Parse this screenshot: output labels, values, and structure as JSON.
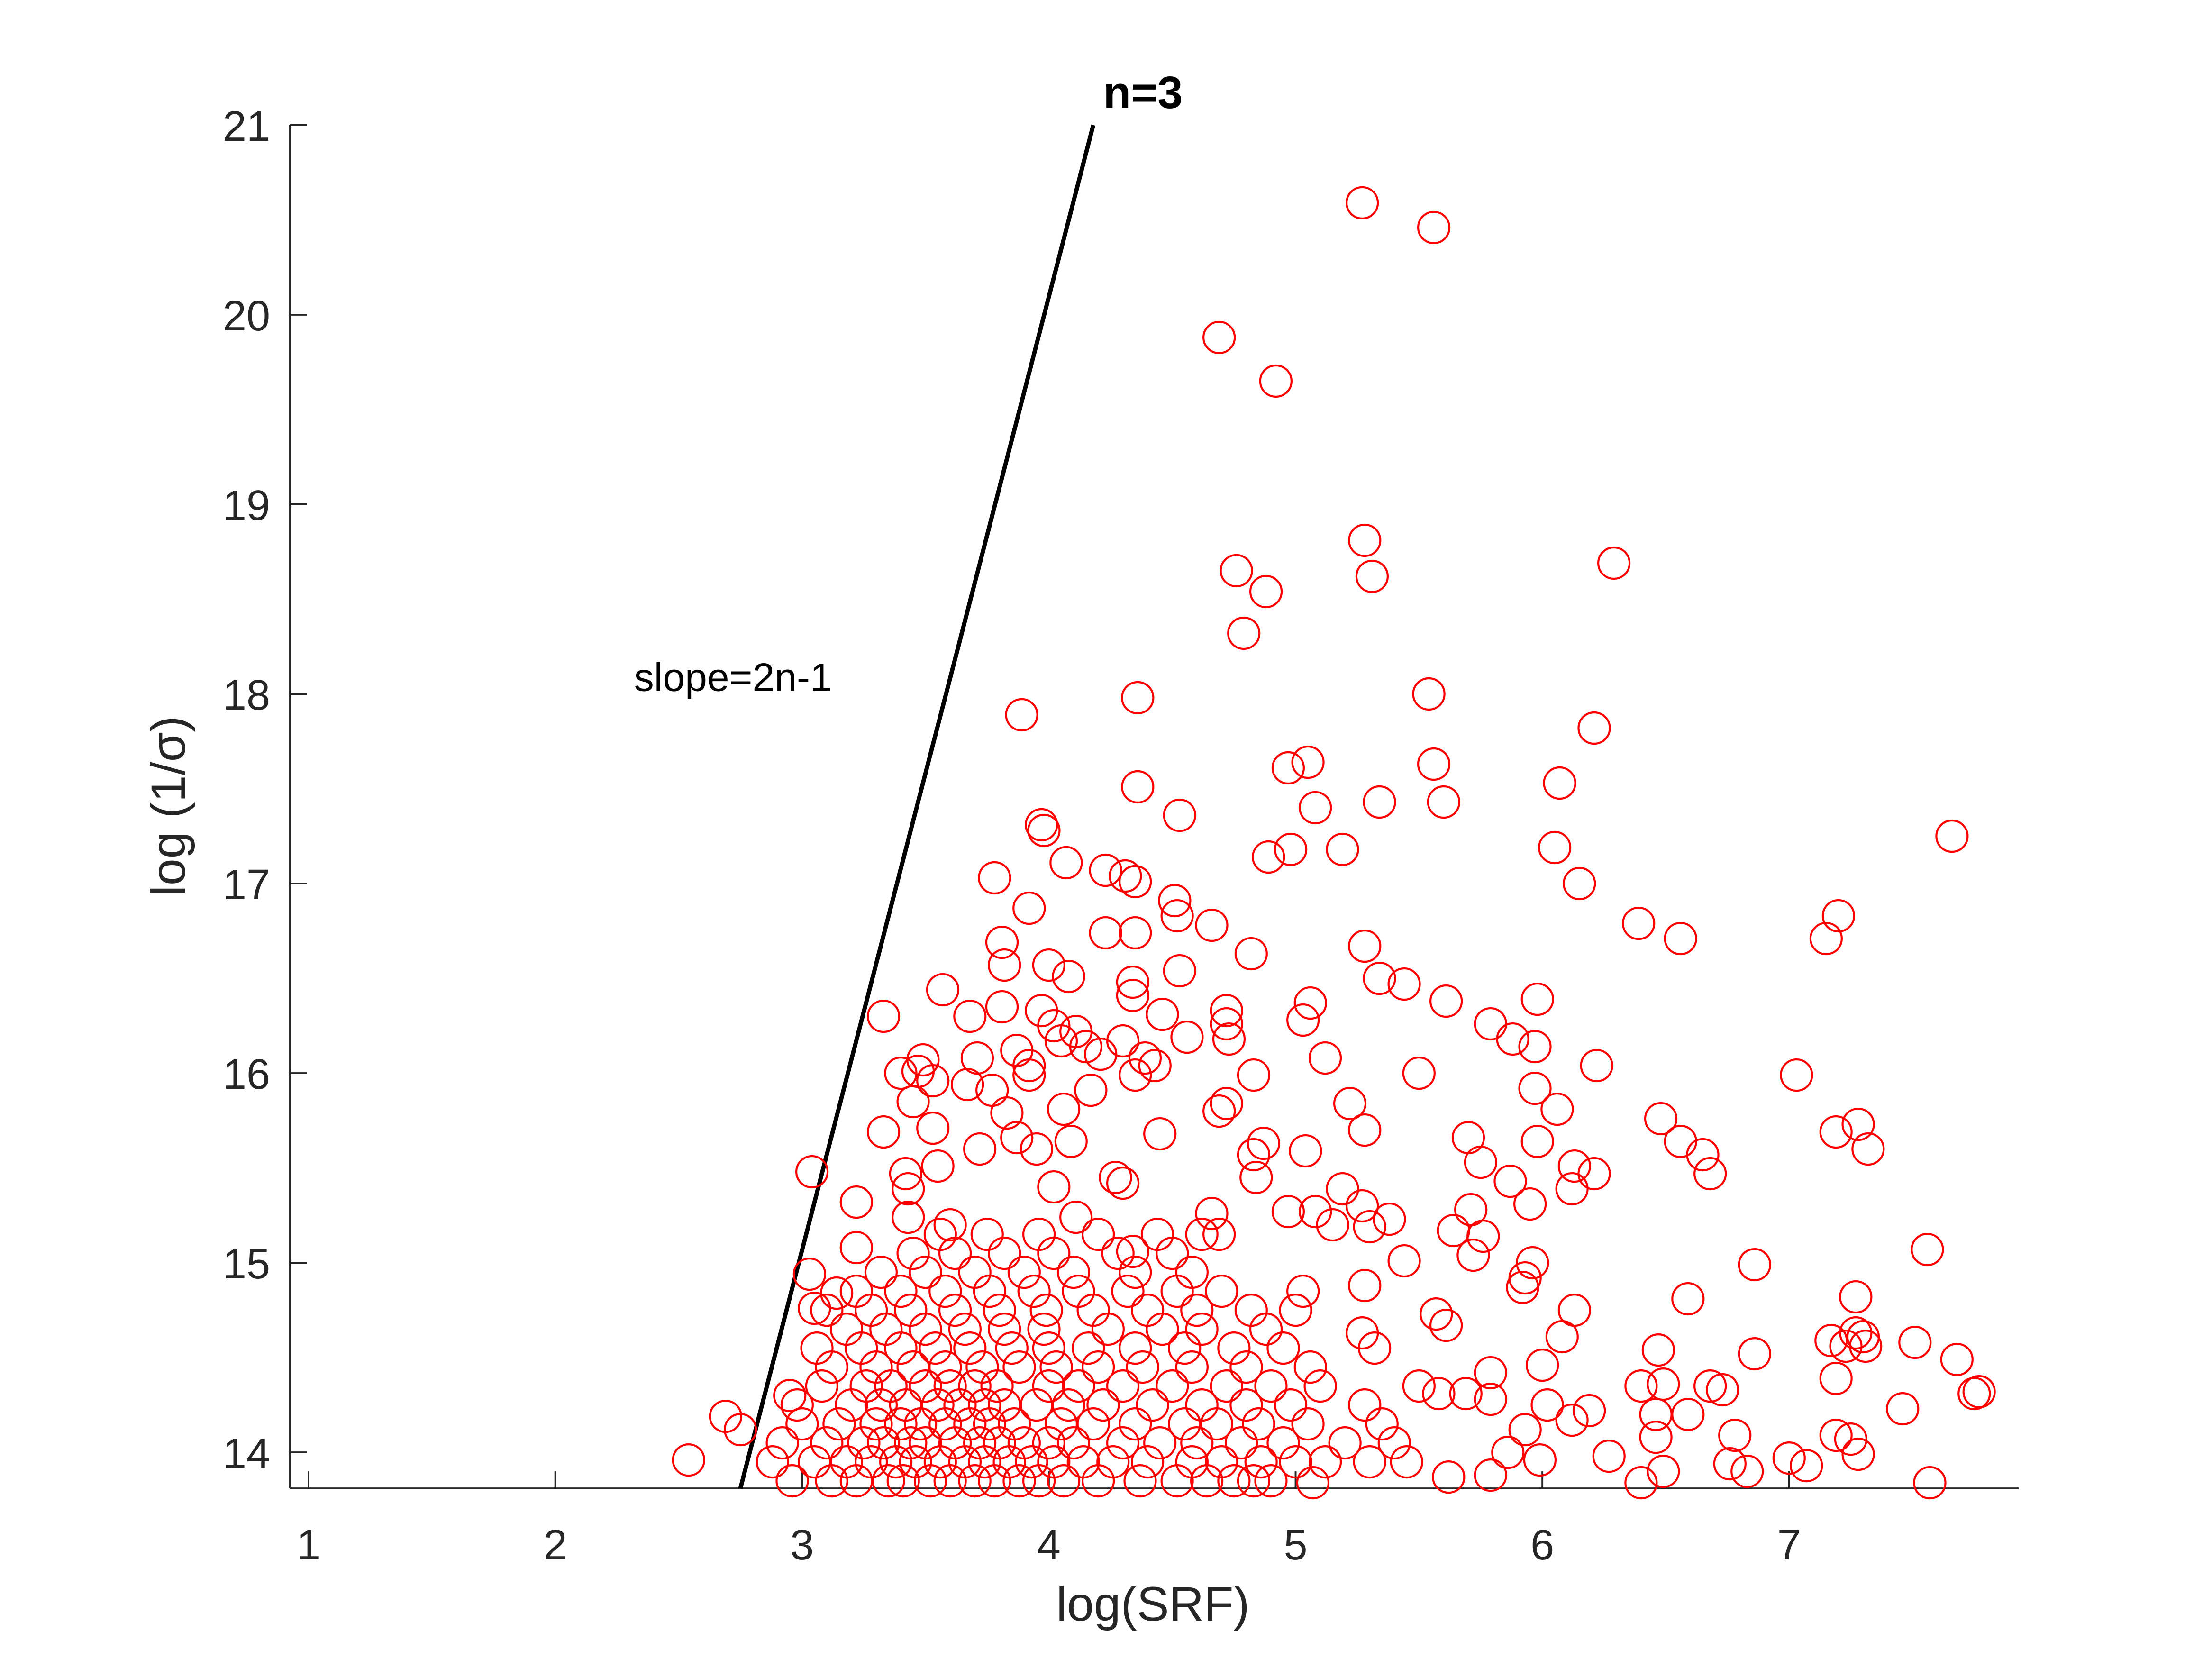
{
  "chart_data": {
    "type": "scatter",
    "xlabel": "log(SRF)",
    "ylabel": "log (1/σ)",
    "annotations": [
      "n=3",
      "slope=2n-1"
    ],
    "color": "#ff0000",
    "xlim": [
      0.925,
      7.93
    ],
    "ylim": [
      13.81,
      21
    ],
    "xticks": [
      1,
      2,
      3,
      4,
      5,
      6,
      7
    ],
    "yticks": [
      14,
      15,
      16,
      17,
      18,
      19,
      20,
      21
    ],
    "grid": false,
    "line": {
      "x": [
        2.75,
        4.18
      ],
      "y": [
        13.81,
        21
      ],
      "color": "#000000"
    },
    "x": [
      5.27,
      5.56,
      4.69,
      4.92,
      5.28,
      5.31,
      6.29,
      4.76,
      4.88,
      4.79,
      3.89,
      4.36,
      5.54,
      6.21,
      5.05,
      4.97,
      5.56,
      6.07,
      4.36,
      5.34,
      5.6,
      5.08,
      4.53,
      3.97,
      3.98,
      7.66,
      5.19,
      4.98,
      4.89,
      6.05,
      4.07,
      4.23,
      4.31,
      4.35,
      3.78,
      6.15,
      7.2,
      4.51,
      4.52,
      3.92,
      4.66,
      6.39,
      6.56,
      7.15,
      4.23,
      4.35,
      5.28,
      3.81,
      4.82,
      3.82,
      4.0,
      4.53,
      4.08,
      5.34,
      5.44,
      4.34,
      3.57,
      5.98,
      5.61,
      5.06,
      4.34,
      4.72,
      4.46,
      3.33,
      3.68,
      5.03,
      3.81,
      3.97,
      4.72,
      5.79,
      4.02,
      4.11,
      5.88,
      4.56,
      4.73,
      4.3,
      3.87,
      4.05,
      5.97,
      4.15,
      5.12,
      3.49,
      3.71,
      4.21,
      4.39,
      6.22,
      4.43,
      3.47,
      3.92,
      3.4,
      4.35,
      4.83,
      5.5,
      7.03,
      3.92,
      3.53,
      3.67,
      5.97,
      4.17,
      3.77,
      5.22,
      4.72,
      4.69,
      3.45,
      6.06,
      4.06,
      3.83,
      6.48,
      3.53,
      3.33,
      5.28,
      7.19,
      7.28,
      5.7,
      3.87,
      6.56,
      5.98,
      4.45,
      4.09,
      3.95,
      7.32,
      5.04,
      6.65,
      3.72,
      4.87,
      4.83,
      5.75,
      3.55,
      6.68,
      6.21,
      6.13,
      3.04,
      3.42,
      4.27,
      4.84,
      5.87,
      3.43,
      6.12,
      5.19,
      4.02,
      4.3,
      3.22,
      5.95,
      5.27,
      5.08,
      4.97,
      5.71,
      5.38,
      4.66,
      3.43,
      5.3,
      5.64,
      3.6,
      4.11,
      5.76,
      5.15,
      4.69,
      5.72,
      3.22,
      7.56,
      4.34,
      5.44,
      5.96,
      6.86,
      3.03,
      5.93,
      5.28,
      5.92,
      5.03,
      6.59,
      7.27,
      3.14,
      6.13,
      5.57,
      3.05,
      5.61,
      5.27,
      7.27,
      6.08,
      7.17,
      7.51,
      7.31,
      7.23,
      6.47,
      7.3,
      6.86,
      7.68,
      6.0,
      5.79,
      7.19,
      6.4,
      6.49,
      6.73,
      6.68,
      7.77,
      7.75,
      5.69,
      5.79,
      5.58,
      7.46,
      6.02,
      6.46,
      6.59,
      6.19,
      6.12,
      6.46,
      7.19,
      7.25,
      7.28,
      6.78,
      5.93,
      5.86,
      6.27,
      7.0,
      7.07,
      6.83,
      6.49,
      6.76,
      5.99,
      6.4,
      7.57,
      5.79,
      5.62,
      2.54,
      2.69,
      2.75,
      2.95,
      5.07,
      2.96,
      3.12,
      3.22,
      3.35,
      3.41,
      3.52,
      3.6,
      3.7,
      3.78,
      3.88,
      3.96,
      4.06,
      4.2,
      4.37,
      4.52,
      4.64,
      4.75,
      4.83,
      4.9,
      2.88,
      3.05,
      3.18,
      3.28,
      3.38,
      3.46,
      3.56,
      3.66,
      3.74,
      3.84,
      3.93,
      4.02,
      4.14,
      4.26,
      4.4,
      4.58,
      4.7,
      4.86,
      5.0,
      5.12,
      5.3,
      5.45,
      2.92,
      3.1,
      3.25,
      3.33,
      3.44,
      3.5,
      3.62,
      3.72,
      3.8,
      3.9,
      4.0,
      4.1,
      4.3,
      4.45,
      4.6,
      4.78,
      4.95,
      5.2,
      5.4,
      3.0,
      3.15,
      3.3,
      3.4,
      3.48,
      3.58,
      3.68,
      3.76,
      3.86,
      4.05,
      4.18,
      4.35,
      4.55,
      4.68,
      4.85,
      5.05,
      5.35,
      2.98,
      3.2,
      3.32,
      3.42,
      3.55,
      3.64,
      3.74,
      3.82,
      3.95,
      4.08,
      4.22,
      4.42,
      4.62,
      4.8,
      4.98,
      5.28,
      3.08,
      3.26,
      3.36,
      3.5,
      3.6,
      3.7,
      3.79,
      4.0,
      4.12,
      4.3,
      4.5,
      4.72,
      4.9,
      5.1,
      5.5,
      3.12,
      3.3,
      3.45,
      3.58,
      3.73,
      3.88,
      4.03,
      4.2,
      4.38,
      4.58,
      4.8,
      5.06,
      3.06,
      3.24,
      3.4,
      3.54,
      3.68,
      3.85,
      4.0,
      4.16,
      4.35,
      4.55,
      4.75,
      4.95,
      5.32,
      3.18,
      3.34,
      3.5,
      3.66,
      3.82,
      3.98,
      4.24,
      4.46,
      4.62,
      4.88,
      3.1,
      3.28,
      3.44,
      3.62,
      3.8,
      3.99,
      4.18,
      4.4,
      4.6,
      4.82,
      5.0,
      3.22,
      3.4,
      3.58,
      3.76,
      3.94,
      4.12,
      4.32,
      4.52,
      4.7,
      3.32,
      3.5,
      3.7,
      3.9,
      4.1,
      4.35,
      4.58,
      3.45,
      3.62,
      3.82,
      4.02,
      4.28,
      4.5,
      3.56,
      3.75,
      3.96,
      4.2,
      4.44,
      4.62
    ],
    "values": [
      20.59,
      20.46,
      19.88,
      19.65,
      18.81,
      18.62,
      18.69,
      18.65,
      18.54,
      18.32,
      17.89,
      17.98,
      18.0,
      17.82,
      17.64,
      17.61,
      17.63,
      17.53,
      17.51,
      17.43,
      17.43,
      17.4,
      17.36,
      17.31,
      17.28,
      17.25,
      17.18,
      17.18,
      17.14,
      17.19,
      17.11,
      17.07,
      17.04,
      17.01,
      17.03,
      17.0,
      16.83,
      16.91,
      16.83,
      16.87,
      16.78,
      16.79,
      16.71,
      16.71,
      16.74,
      16.74,
      16.67,
      16.69,
      16.63,
      16.57,
      16.57,
      16.54,
      16.51,
      16.5,
      16.47,
      16.48,
      16.44,
      16.39,
      16.38,
      16.37,
      16.41,
      16.33,
      16.31,
      16.3,
      16.3,
      16.28,
      16.35,
      16.33,
      16.26,
      16.26,
      16.25,
      16.22,
      16.18,
      16.19,
      16.18,
      16.17,
      16.12,
      16.17,
      16.14,
      16.14,
      16.08,
      16.07,
      16.08,
      16.1,
      16.08,
      16.04,
      16.04,
      16.01,
      16.04,
      16.0,
      15.99,
      15.99,
      16.0,
      15.99,
      15.99,
      15.96,
      15.94,
      15.92,
      15.91,
      15.91,
      15.84,
      15.84,
      15.8,
      15.85,
      15.81,
      15.81,
      15.79,
      15.76,
      15.71,
      15.69,
      15.7,
      15.69,
      15.73,
      15.66,
      15.66,
      15.64,
      15.64,
      15.68,
      15.64,
      15.6,
      15.6,
      15.59,
      15.57,
      15.6,
      15.63,
      15.57,
      15.53,
      15.51,
      15.47,
      15.47,
      15.51,
      15.48,
      15.47,
      15.45,
      15.45,
      15.43,
      15.39,
      15.39,
      15.39,
      15.4,
      15.42,
      15.32,
      15.31,
      15.3,
      15.27,
      15.27,
      15.28,
      15.23,
      15.26,
      15.24,
      15.19,
      15.17,
      15.2,
      15.24,
      15.14,
      15.2,
      15.15,
      15.04,
      15.08,
      15.07,
      15.06,
      15.01,
      15.0,
      14.99,
      14.94,
      14.92,
      14.88,
      14.87,
      14.85,
      14.81,
      14.82,
      14.84,
      14.75,
      14.73,
      14.76,
      14.67,
      14.63,
      14.63,
      14.61,
      14.59,
      14.58,
      14.56,
      14.56,
      14.54,
      14.61,
      14.52,
      14.49,
      14.46,
      14.42,
      14.39,
      14.35,
      14.36,
      14.33,
      14.35,
      14.32,
      14.31,
      14.31,
      14.28,
      14.31,
      14.23,
      14.25,
      14.2,
      14.2,
      14.22,
      14.17,
      14.08,
      14.09,
      14.07,
      13.99,
      14.09,
      14.12,
      14.0,
      13.98,
      13.97,
      13.93,
      13.9,
      13.9,
      13.94,
      13.96,
      13.84,
      13.84,
      13.88,
      13.87,
      13.96,
      14.19,
      14.12,
      14.3,
      13.84,
      13.85,
      13.85,
      13.85,
      13.85,
      13.85,
      13.85,
      13.85,
      13.85,
      13.85,
      13.85,
      13.85,
      13.85,
      13.85,
      13.85,
      13.85,
      13.85,
      13.85,
      13.85,
      13.85,
      13.95,
      13.95,
      13.95,
      13.95,
      13.95,
      13.95,
      13.95,
      13.95,
      13.95,
      13.95,
      13.95,
      13.95,
      13.95,
      13.95,
      13.95,
      13.95,
      13.95,
      13.95,
      13.95,
      13.95,
      13.95,
      13.95,
      14.05,
      14.05,
      14.05,
      14.05,
      14.05,
      14.05,
      14.05,
      14.05,
      14.05,
      14.05,
      14.05,
      14.05,
      14.05,
      14.05,
      14.05,
      14.05,
      14.05,
      14.05,
      14.05,
      14.15,
      14.15,
      14.15,
      14.15,
      14.15,
      14.15,
      14.15,
      14.15,
      14.15,
      14.15,
      14.15,
      14.15,
      14.15,
      14.15,
      14.15,
      14.15,
      14.15,
      14.25,
      14.25,
      14.25,
      14.25,
      14.25,
      14.25,
      14.25,
      14.25,
      14.25,
      14.25,
      14.25,
      14.25,
      14.25,
      14.25,
      14.25,
      14.25,
      14.35,
      14.35,
      14.35,
      14.35,
      14.35,
      14.35,
      14.35,
      14.35,
      14.35,
      14.35,
      14.35,
      14.35,
      14.35,
      14.35,
      14.35,
      14.45,
      14.45,
      14.45,
      14.45,
      14.45,
      14.45,
      14.45,
      14.45,
      14.45,
      14.45,
      14.45,
      14.45,
      14.55,
      14.55,
      14.55,
      14.55,
      14.55,
      14.55,
      14.55,
      14.55,
      14.55,
      14.55,
      14.55,
      14.55,
      14.55,
      14.65,
      14.65,
      14.65,
      14.65,
      14.65,
      14.65,
      14.65,
      14.65,
      14.65,
      14.65,
      14.75,
      14.75,
      14.75,
      14.75,
      14.75,
      14.75,
      14.75,
      14.75,
      14.75,
      14.75,
      14.75,
      14.85,
      14.85,
      14.85,
      14.85,
      14.85,
      14.85,
      14.85,
      14.85,
      14.85,
      14.95,
      14.95,
      14.95,
      14.95,
      14.95,
      14.95,
      14.95,
      15.05,
      15.05,
      15.05,
      15.05,
      15.05,
      15.05,
      15.15,
      15.15,
      15.15,
      15.15,
      15.15,
      15.15
    ]
  }
}
